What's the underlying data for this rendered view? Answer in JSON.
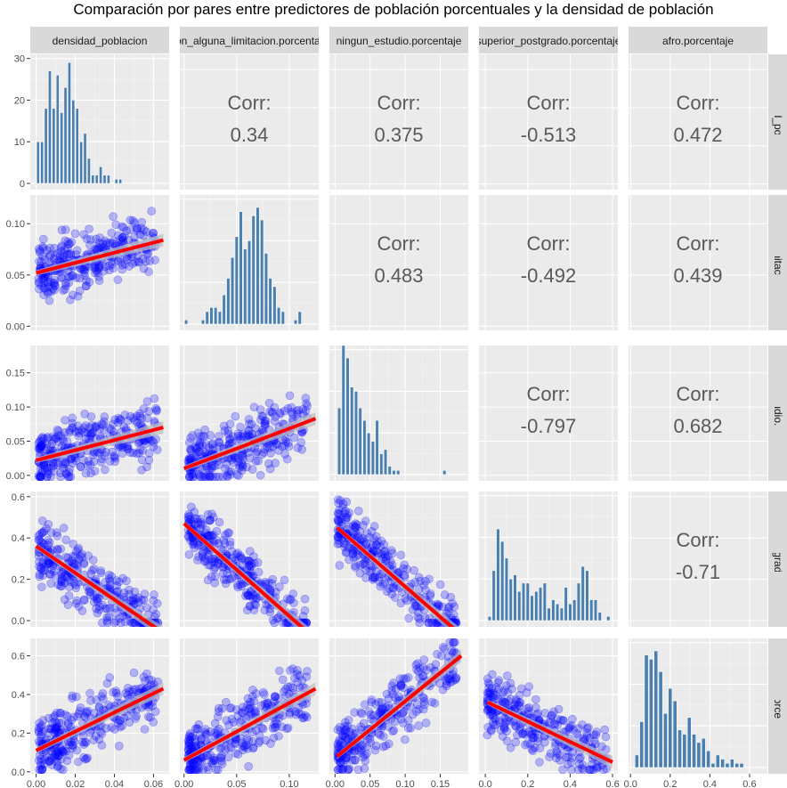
{
  "chart_data": {
    "type": "scatter",
    "title": "Comparación por pares entre predictores de población porcentuales y la densidad de población",
    "variables": [
      "densidad_poblacion",
      "con_alguna_limitacion.porcentaje",
      "ningun_estudio.porcentaje",
      "superior_postgrado.porcentaje",
      "afro.porcentaje"
    ],
    "strip_labels": [
      "densidad_poblacion",
      "con_alguna_limitacion.porcentaje",
      "ningun_estudio.porcentaje",
      "superior_postgrado.porcentaje",
      "afro.porcentaje"
    ],
    "axes": {
      "densidad_poblacion": {
        "range": [
          -0.003,
          0.068
        ],
        "ticks": [
          0.0,
          0.02,
          0.04,
          0.06
        ],
        "tick_labels": [
          "0.00",
          "0.02",
          "0.04",
          "0.06"
        ]
      },
      "con_alguna_limitacion.porcentaje": {
        "range": [
          -0.004,
          0.128
        ],
        "ticks": [
          0.0,
          0.05,
          0.1
        ],
        "tick_labels": [
          "0.00",
          "0.05",
          "0.10"
        ]
      },
      "ningun_estudio.porcentaje": {
        "range": [
          -0.008,
          0.19
        ],
        "ticks": [
          0.0,
          0.05,
          0.1,
          0.15
        ],
        "tick_labels": [
          "0.00",
          "0.05",
          "0.10",
          "0.15"
        ]
      },
      "superior_postgrado.porcentaje": {
        "range": [
          -0.03,
          0.625
        ],
        "ticks": [
          0.0,
          0.2,
          0.4,
          0.6
        ],
        "tick_labels": [
          "0.0",
          "0.2",
          "0.4",
          "0.6"
        ]
      },
      "afro.porcentaje": {
        "range": [
          -0.01,
          0.69
        ],
        "ticks": [
          0.0,
          0.2,
          0.4,
          0.6
        ],
        "tick_labels": [
          "0.0",
          "0.2",
          "0.4",
          "0.6"
        ]
      }
    },
    "diag_count_axis": {
      "range": [
        -1.5,
        31
      ],
      "ticks": [
        0,
        10,
        20,
        30
      ],
      "tick_labels": [
        "0",
        "10",
        "20",
        "30"
      ]
    },
    "correlations": [
      {
        "row": 0,
        "col": 1,
        "label": "Corr:",
        "value": "0.34"
      },
      {
        "row": 0,
        "col": 2,
        "label": "Corr:",
        "value": "0.375"
      },
      {
        "row": 0,
        "col": 3,
        "label": "Corr:",
        "value": "-0.513"
      },
      {
        "row": 0,
        "col": 4,
        "label": "Corr:",
        "value": "0.472"
      },
      {
        "row": 1,
        "col": 2,
        "label": "Corr:",
        "value": "0.483"
      },
      {
        "row": 1,
        "col": 3,
        "label": "Corr:",
        "value": "-0.492"
      },
      {
        "row": 1,
        "col": 4,
        "label": "Corr:",
        "value": "0.439"
      },
      {
        "row": 2,
        "col": 3,
        "label": "Corr:",
        "value": "-0.797"
      },
      {
        "row": 2,
        "col": 4,
        "label": "Corr:",
        "value": "0.682"
      },
      {
        "row": 3,
        "col": 4,
        "label": "Corr:",
        "value": "-0.71"
      }
    ],
    "histograms": [
      {
        "variable": "densidad_poblacion",
        "bin_start": 0.0,
        "bin_width": 0.002,
        "counts": [
          10,
          10,
          18,
          27,
          18,
          26,
          17,
          23,
          29,
          20,
          18,
          10,
          12,
          6,
          2,
          2,
          4,
          2,
          2,
          0,
          1,
          1
        ]
      },
      {
        "variable": "con_alguna_limitacion.porcentaje",
        "bin_start": 0.0,
        "bin_width": 0.004,
        "counts": [
          1,
          0,
          0,
          0,
          1,
          3,
          4,
          4,
          3,
          7,
          11,
          16,
          21,
          27,
          18,
          20,
          26,
          28,
          25,
          17,
          11,
          9,
          4,
          3,
          0,
          0,
          1,
          3
        ]
      },
      {
        "variable": "ningun_estudio.porcentaje",
        "bin_start": 0.003,
        "bin_width": 0.006,
        "counts": [
          16,
          31,
          28,
          21,
          20,
          16,
          13,
          10,
          8,
          13,
          5,
          6,
          2,
          1,
          1,
          0,
          0,
          0,
          0,
          0,
          0,
          0,
          0,
          0,
          0,
          1
        ]
      },
      {
        "variable": "superior_postgrado.porcentaje",
        "bin_start": 0.01,
        "bin_width": 0.02,
        "counts": [
          1,
          12,
          22,
          19,
          15,
          10,
          11,
          7,
          9,
          9,
          6,
          7,
          8,
          9,
          3,
          5,
          4,
          3,
          8,
          4,
          5,
          9,
          13,
          12,
          5,
          5,
          2,
          0,
          1
        ]
      },
      {
        "variable": "afro.porcentaje",
        "bin_start": 0.02,
        "bin_width": 0.024,
        "counts": [
          3,
          11,
          27,
          26,
          28,
          23,
          13,
          19,
          16,
          9,
          8,
          12,
          8,
          6,
          7,
          4,
          1,
          3,
          2,
          1,
          2,
          1,
          1
        ]
      }
    ],
    "regression": {
      "line_color": "#ff0000",
      "lines": [
        {
          "row": 1,
          "col": 0,
          "x": [
            0.0,
            0.065
          ],
          "y": [
            0.052,
            0.084
          ]
        },
        {
          "row": 2,
          "col": 0,
          "x": [
            0.0,
            0.065
          ],
          "y": [
            0.022,
            0.07
          ]
        },
        {
          "row": 2,
          "col": 1,
          "x": [
            0.0,
            0.125
          ],
          "y": [
            0.01,
            0.083
          ]
        },
        {
          "row": 3,
          "col": 0,
          "x": [
            0.0,
            0.065
          ],
          "y": [
            0.36,
            -0.06
          ]
        },
        {
          "row": 3,
          "col": 1,
          "x": [
            0.0,
            0.125
          ],
          "y": [
            0.47,
            -0.09
          ]
        },
        {
          "row": 3,
          "col": 2,
          "x": [
            0.003,
            0.18
          ],
          "y": [
            0.45,
            -0.07
          ]
        },
        {
          "row": 4,
          "col": 0,
          "x": [
            0.0,
            0.065
          ],
          "y": [
            0.11,
            0.43
          ]
        },
        {
          "row": 4,
          "col": 1,
          "x": [
            0.0,
            0.125
          ],
          "y": [
            0.06,
            0.43
          ]
        },
        {
          "row": 4,
          "col": 2,
          "x": [
            0.003,
            0.18
          ],
          "y": [
            0.08,
            0.6
          ]
        },
        {
          "row": 4,
          "col": 3,
          "x": [
            0.01,
            0.6
          ],
          "y": [
            0.36,
            0.05
          ]
        }
      ]
    },
    "scatter_points": {
      "color": "#0000ff",
      "opacity": 0.25,
      "n": 300
    },
    "bar_color": "#4a7fb0",
    "panel_background": "#ebebeb",
    "strip_background": "#d9d9d9",
    "grid": true
  }
}
